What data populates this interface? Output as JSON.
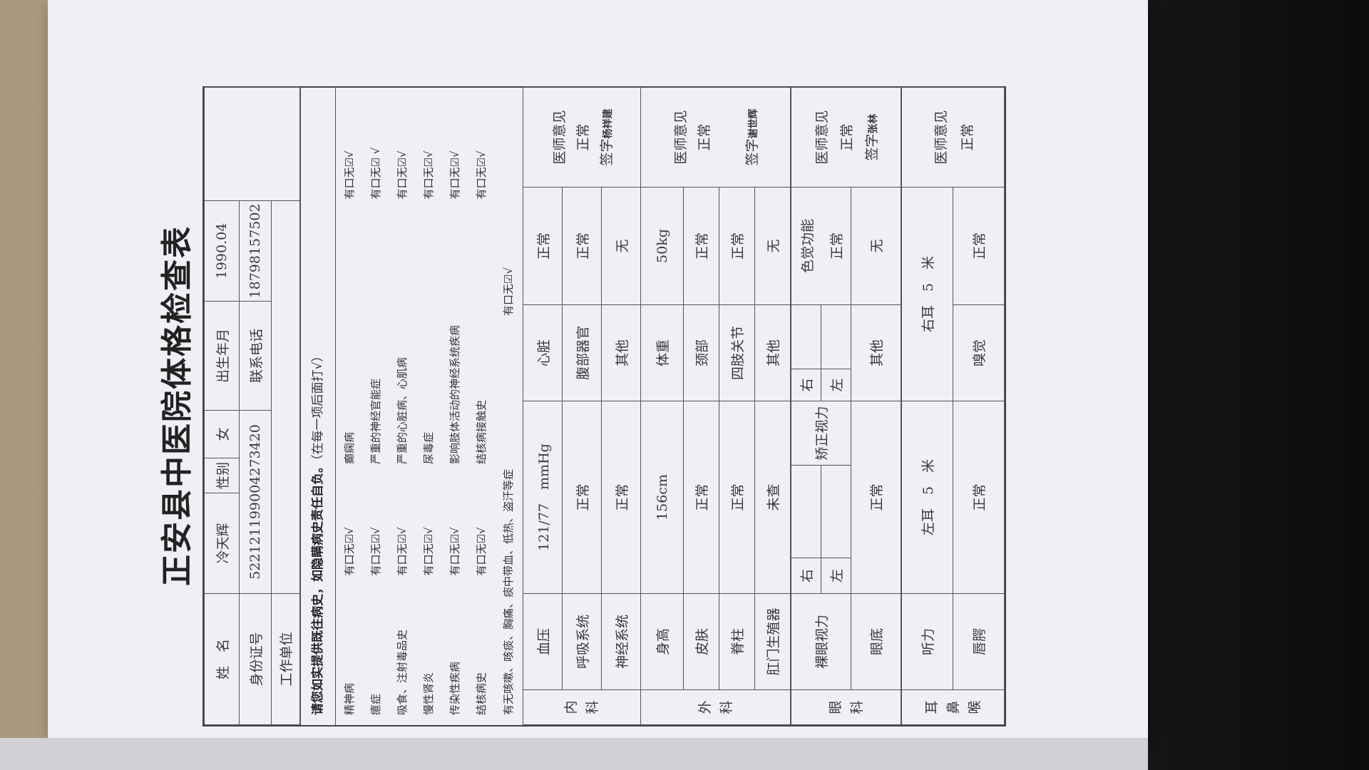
{
  "title": "正安县中医院体格检查表",
  "personal": {
    "name_label": "姓　名",
    "name": "冷天辉",
    "sex_label": "性别",
    "sex": "女",
    "birth_label": "出生年月",
    "birth": "1990.04",
    "id_label": "身份证号",
    "id": "522121199004273420",
    "phone_label": "联系电话",
    "phone": "18798157502",
    "work_label": "工作单位",
    "work": ""
  },
  "notice": {
    "bold": "请您如实提供既往病史，如隐瞒病史责任自负。",
    "normal": "（在每一项后面打√）"
  },
  "history": [
    {
      "left": "精神病",
      "left_check": "有口无☑√",
      "right": "癫痫病",
      "right_check": "有口无☑√"
    },
    {
      "left": "癔症",
      "left_check": "有口无☑√",
      "right": "严重的神经官能症",
      "right_check": "有口无☑ √"
    },
    {
      "left": "吸食、注射毒品史",
      "left_check": "有口无☑√",
      "right": "严重的心脏病、心肌病",
      "right_check": "有口无☑√"
    },
    {
      "left": "慢性肾炎",
      "left_check": "有口无☑√",
      "right": "尿毒症",
      "right_check": "有口无☑√"
    },
    {
      "left": "传染性疾病",
      "left_check": "有口无☑√",
      "right": "影响肢体活动的神经系统疾病",
      "right_check": "有口无☑√"
    },
    {
      "left": "结核病史",
      "left_check": "有口无☑√",
      "right": "结核病接触史",
      "right_check": "有口无☑√"
    }
  ],
  "cough": {
    "label": "有无咳嗽、咳痰、胸痛、痰中带血、低热、盗汗等症",
    "check": "有口无☑√"
  },
  "internal": {
    "section": [
      "内",
      "科"
    ],
    "rows": [
      {
        "l1": "血压",
        "v1": "121/77　mmHg",
        "l2": "心脏",
        "v2": "正常"
      },
      {
        "l1": "呼吸系统",
        "v1": "正常",
        "l2": "腹部器官",
        "v2": "正常"
      },
      {
        "l1": "神经系统",
        "v1": "正常",
        "l2": "其他",
        "v2": "无"
      }
    ],
    "doctor": {
      "label": "医师意见",
      "opinion": "正常",
      "sign_label": "签字",
      "signature": "杨祥建"
    }
  },
  "surgical": {
    "section": [
      "外",
      "科"
    ],
    "rows": [
      {
        "l1": "身高",
        "v1": "156cm",
        "l2": "体重",
        "v2": "50kg"
      },
      {
        "l1": "皮肤",
        "v1": "正常",
        "l2": "颈部",
        "v2": "正常"
      },
      {
        "l1": "脊柱",
        "v1": "正常",
        "l2": "四肢关节",
        "v2": "正常"
      },
      {
        "l1": "肛门生殖器",
        "v1": "未查",
        "l2": "其他",
        "v2": "无"
      }
    ],
    "doctor": {
      "label": "医师意见",
      "opinion": "正常",
      "sign_label": "签字",
      "signature": "谢世辉"
    }
  },
  "eye": {
    "section": [
      "眼",
      "科"
    ],
    "naked_label": "裸眼视力",
    "right": "右",
    "left": "左",
    "corrected_label": "矫正视力",
    "color_label": "色觉功能",
    "color_value": "正常",
    "fundus_label": "眼底",
    "fundus_value": "正常",
    "other_label": "其他",
    "other_value": "无",
    "doctor": {
      "label": "医师意见",
      "opinion": "正常",
      "sign_label": "签字",
      "signature": "张林"
    }
  },
  "ent": {
    "section": [
      "耳",
      "鼻",
      "喉"
    ],
    "hearing_label": "听力",
    "left_ear": "左耳　5　米",
    "right_ear": "右耳　5　米",
    "lip_label": "唇腭",
    "lip_value": "正常",
    "smell_label": "嗅觉",
    "smell_value": "正常",
    "doctor": {
      "label": "医师意见",
      "opinion": "正常"
    }
  }
}
